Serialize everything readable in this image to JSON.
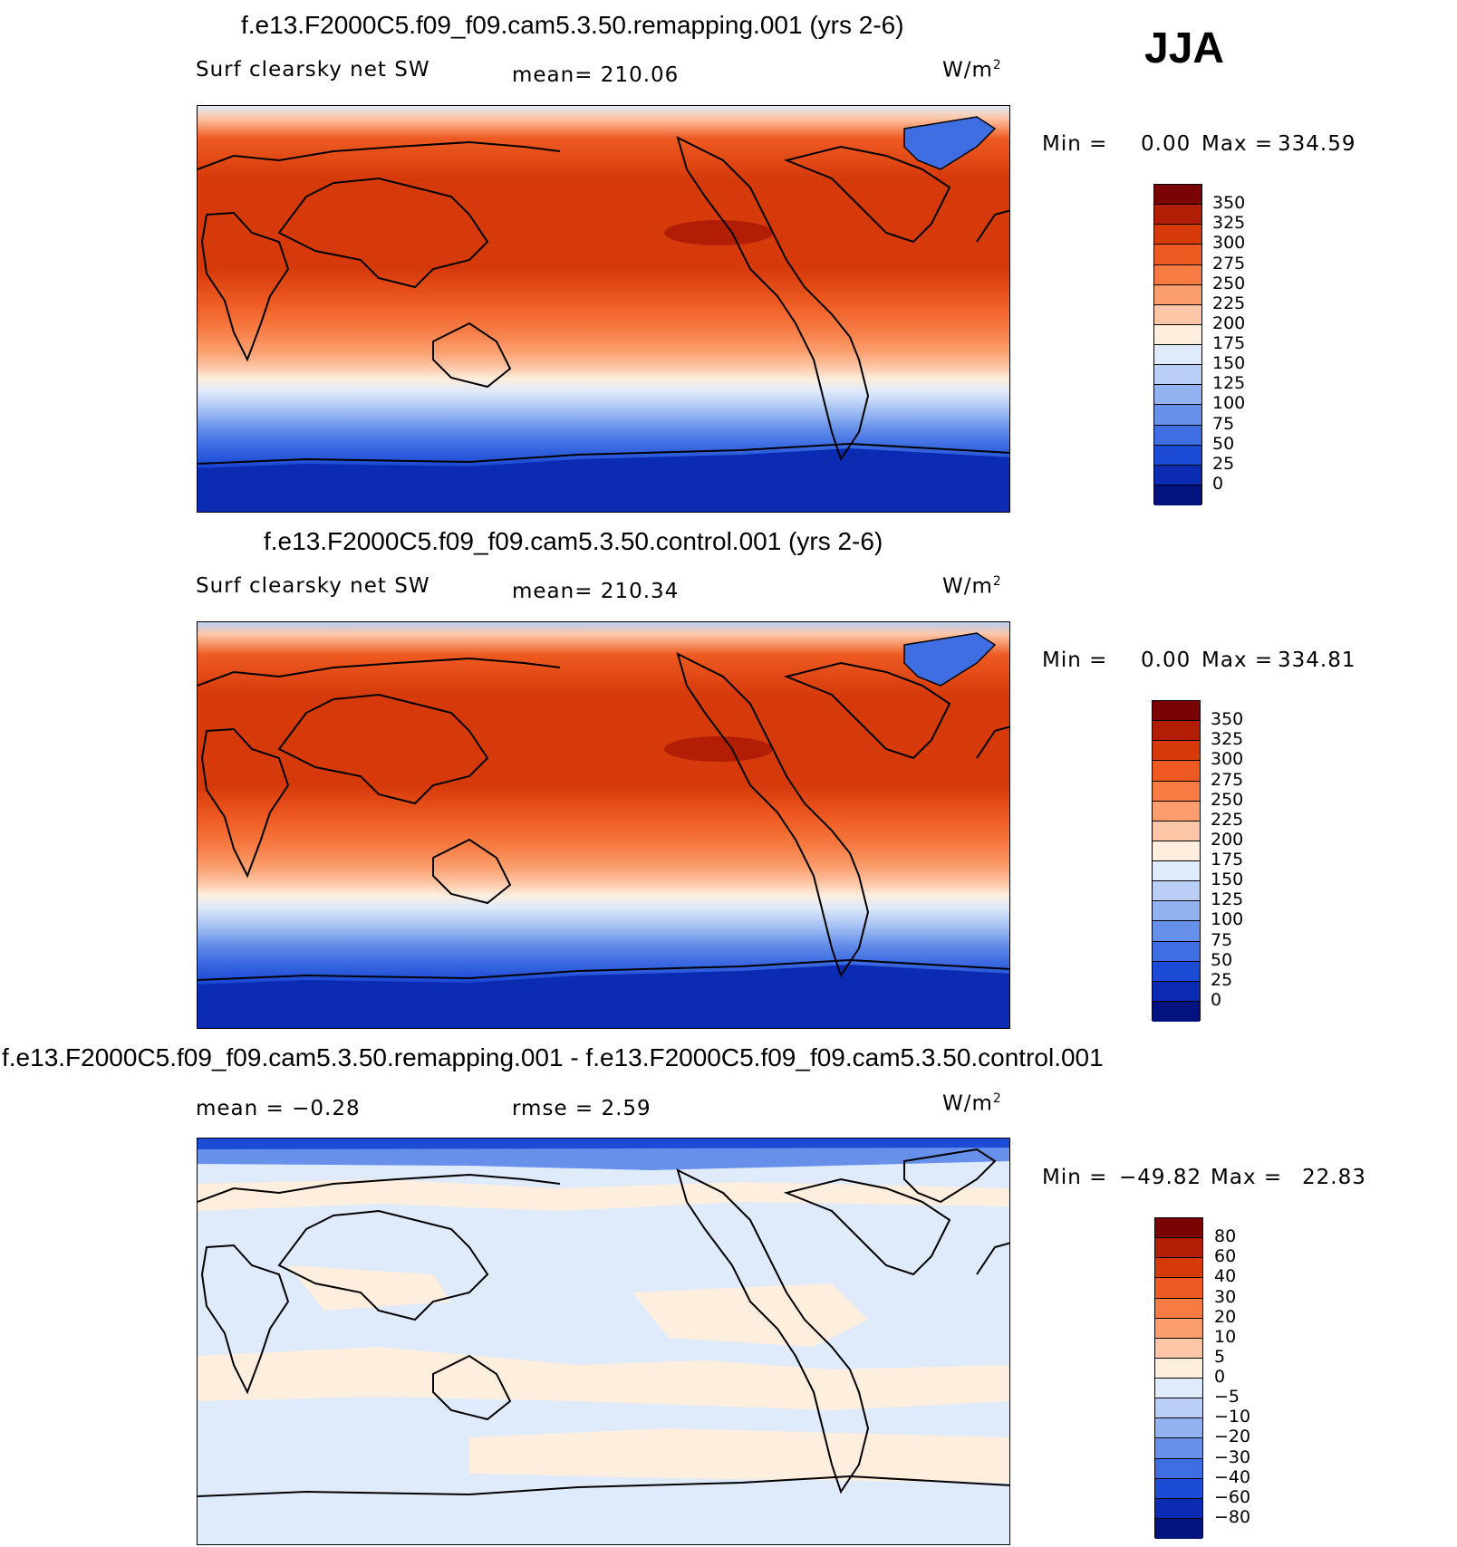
{
  "season": "JJA",
  "panels": [
    {
      "title": "f.e13.F2000C5.f09_f09.cam5.3.50.remapping.001 (yrs 2-6)",
      "left_label": "Surf clearsky net SW",
      "middle_label": "mean= 210.06",
      "units_base": "W/m",
      "units_exp": "2",
      "minmax": {
        "min_label": "Min =",
        "min_value": "0.00",
        "max_label": "Max =",
        "max_value": "334.59"
      },
      "colorbar": {
        "ticks": [
          "350",
          "325",
          "300",
          "275",
          "250",
          "225",
          "200",
          "175",
          "150",
          "125",
          "100",
          "75",
          "50",
          "25",
          "0"
        ],
        "colors": [
          "#7a0403",
          "#b21d06",
          "#d63a0b",
          "#ee5a22",
          "#f67c44",
          "#fb9d6c",
          "#fdc6a6",
          "#fdeedd",
          "#dfeafa",
          "#b9cff5",
          "#92b3f0",
          "#6690ea",
          "#3f6ee3",
          "#1c4bd6",
          "#0b2bb3",
          "#02137f"
        ]
      }
    },
    {
      "title": "f.e13.F2000C5.f09_f09.cam5.3.50.control.001 (yrs 2-6)",
      "left_label": "Surf clearsky net SW",
      "middle_label": "mean= 210.34",
      "units_base": "W/m",
      "units_exp": "2",
      "minmax": {
        "min_label": "Min =",
        "min_value": "0.00",
        "max_label": "Max =",
        "max_value": "334.81"
      },
      "colorbar": {
        "ticks": [
          "350",
          "325",
          "300",
          "275",
          "250",
          "225",
          "200",
          "175",
          "150",
          "125",
          "100",
          "75",
          "50",
          "25",
          "0"
        ],
        "colors": [
          "#7a0403",
          "#b21d06",
          "#d63a0b",
          "#ee5a22",
          "#f67c44",
          "#fb9d6c",
          "#fdc6a6",
          "#fdeedd",
          "#dfeafa",
          "#b9cff5",
          "#92b3f0",
          "#6690ea",
          "#3f6ee3",
          "#1c4bd6",
          "#0b2bb3",
          "#02137f"
        ]
      }
    },
    {
      "title": "f.e13.F2000C5.f09_f09.cam5.3.50.remapping.001 - f.e13.F2000C5.f09_f09.cam5.3.50.control.001",
      "left_label": "mean =   −0.28",
      "middle_label": "rmse =    2.59",
      "units_base": "W/m",
      "units_exp": "2",
      "minmax": {
        "min_label": "Min =",
        "min_value": "−49.82",
        "max_label": "Max =",
        "max_value": "22.83"
      },
      "colorbar": {
        "ticks": [
          "80",
          "60",
          "40",
          "30",
          "20",
          "10",
          "5",
          "0",
          "−5",
          "−10",
          "−20",
          "−30",
          "−40",
          "−60",
          "−80"
        ],
        "colors": [
          "#7a0403",
          "#b21d06",
          "#d63a0b",
          "#ee5a22",
          "#f67c44",
          "#fb9d6c",
          "#fdc6a6",
          "#fdeedd",
          "#dfeafa",
          "#b9cff5",
          "#92b3f0",
          "#6690ea",
          "#3f6ee3",
          "#1c4bd6",
          "#0b2bb3",
          "#02137f"
        ]
      }
    }
  ],
  "map_colors": {
    "antarctic": "#0b2bb3",
    "greenland": "#3f6ee3",
    "coast": "#000000",
    "diff_background": "#dfeafa",
    "diff_positive": "#fdeedd",
    "diff_polar_neg": "#6690ea"
  }
}
